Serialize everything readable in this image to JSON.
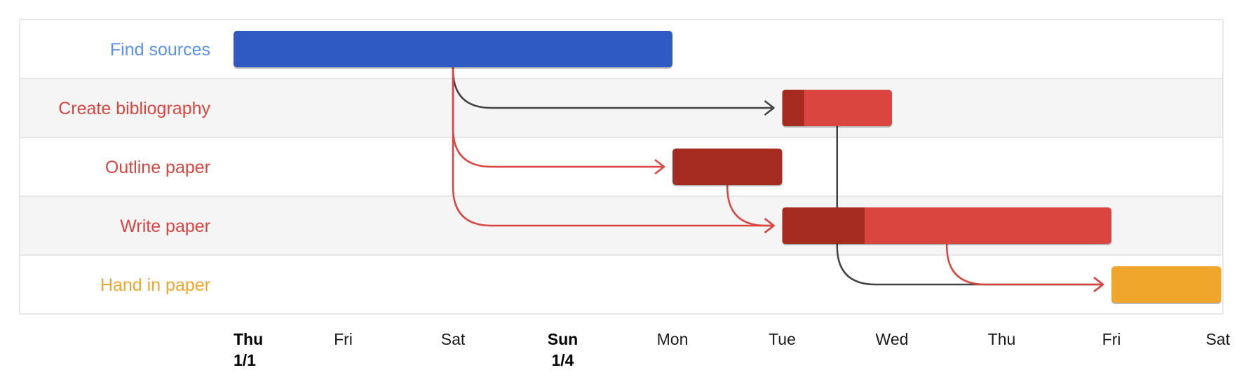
{
  "chart_data": {
    "type": "gantt",
    "title": "",
    "tasks": [
      {
        "id": "find",
        "name": "Find sources",
        "start": 0,
        "end": 4,
        "percent_complete": 100,
        "color": "#2f5ac4",
        "done_color": "#2f5ac4",
        "label_color": "#5b8ff0"
      },
      {
        "id": "bib",
        "name": "Create bibliography",
        "start": 5,
        "end": 6,
        "percent_complete": 20,
        "color": "#db4540",
        "done_color": "#a52a1f",
        "label_color": "#db4540",
        "depends_on": [
          "find"
        ]
      },
      {
        "id": "outline",
        "name": "Outline paper",
        "start": 4,
        "end": 5,
        "percent_complete": 100,
        "color": "#a52a1f",
        "done_color": "#a52a1f",
        "label_color": "#db4540",
        "depends_on": [
          "find"
        ]
      },
      {
        "id": "write",
        "name": "Write paper",
        "start": 5,
        "end": 8,
        "percent_complete": 25,
        "color": "#db4540",
        "done_color": "#a52a1f",
        "label_color": "#db4540",
        "depends_on": [
          "find",
          "outline"
        ]
      },
      {
        "id": "handin",
        "name": "Hand in paper",
        "start": 8,
        "end": 9,
        "percent_complete": 0,
        "color": "#f0a62a",
        "done_color": "#f0a62a",
        "label_color": "#f0a62a",
        "depends_on": [
          "bib",
          "write"
        ]
      }
    ],
    "dependencies": [
      {
        "from": "find",
        "to": "bib",
        "critical": false
      },
      {
        "from": "find",
        "to": "outline",
        "critical": true
      },
      {
        "from": "find",
        "to": "write",
        "critical": true
      },
      {
        "from": "outline",
        "to": "write",
        "critical": true
      },
      {
        "from": "bib",
        "to": "handin",
        "critical": false
      },
      {
        "from": "write",
        "to": "handin",
        "critical": true
      }
    ],
    "x_ticks": [
      {
        "value": 0,
        "line1": "Thu",
        "line2": "1/1",
        "bold": true
      },
      {
        "value": 1,
        "line1": "Fri",
        "line2": "",
        "bold": false
      },
      {
        "value": 2,
        "line1": "Sat",
        "line2": "",
        "bold": false
      },
      {
        "value": 3,
        "line1": "Sun",
        "line2": "1/4",
        "bold": true
      },
      {
        "value": 4,
        "line1": "Mon",
        "line2": "",
        "bold": false
      },
      {
        "value": 5,
        "line1": "Tue",
        "line2": "",
        "bold": false
      },
      {
        "value": 6,
        "line1": "Wed",
        "line2": "",
        "bold": false
      },
      {
        "value": 7,
        "line1": "Thu",
        "line2": "",
        "bold": false
      },
      {
        "value": 8,
        "line1": "Fri",
        "line2": "",
        "bold": false
      },
      {
        "value": 9,
        "line1": "Sat",
        "line2": "",
        "bold": false
      }
    ],
    "xlim": [
      0,
      9
    ],
    "colors": {
      "critical_arrow": "#db4540",
      "normal_arrow": "#424242",
      "row_alt": "#f5f5f5",
      "row_border": "#e0e0e0"
    }
  }
}
